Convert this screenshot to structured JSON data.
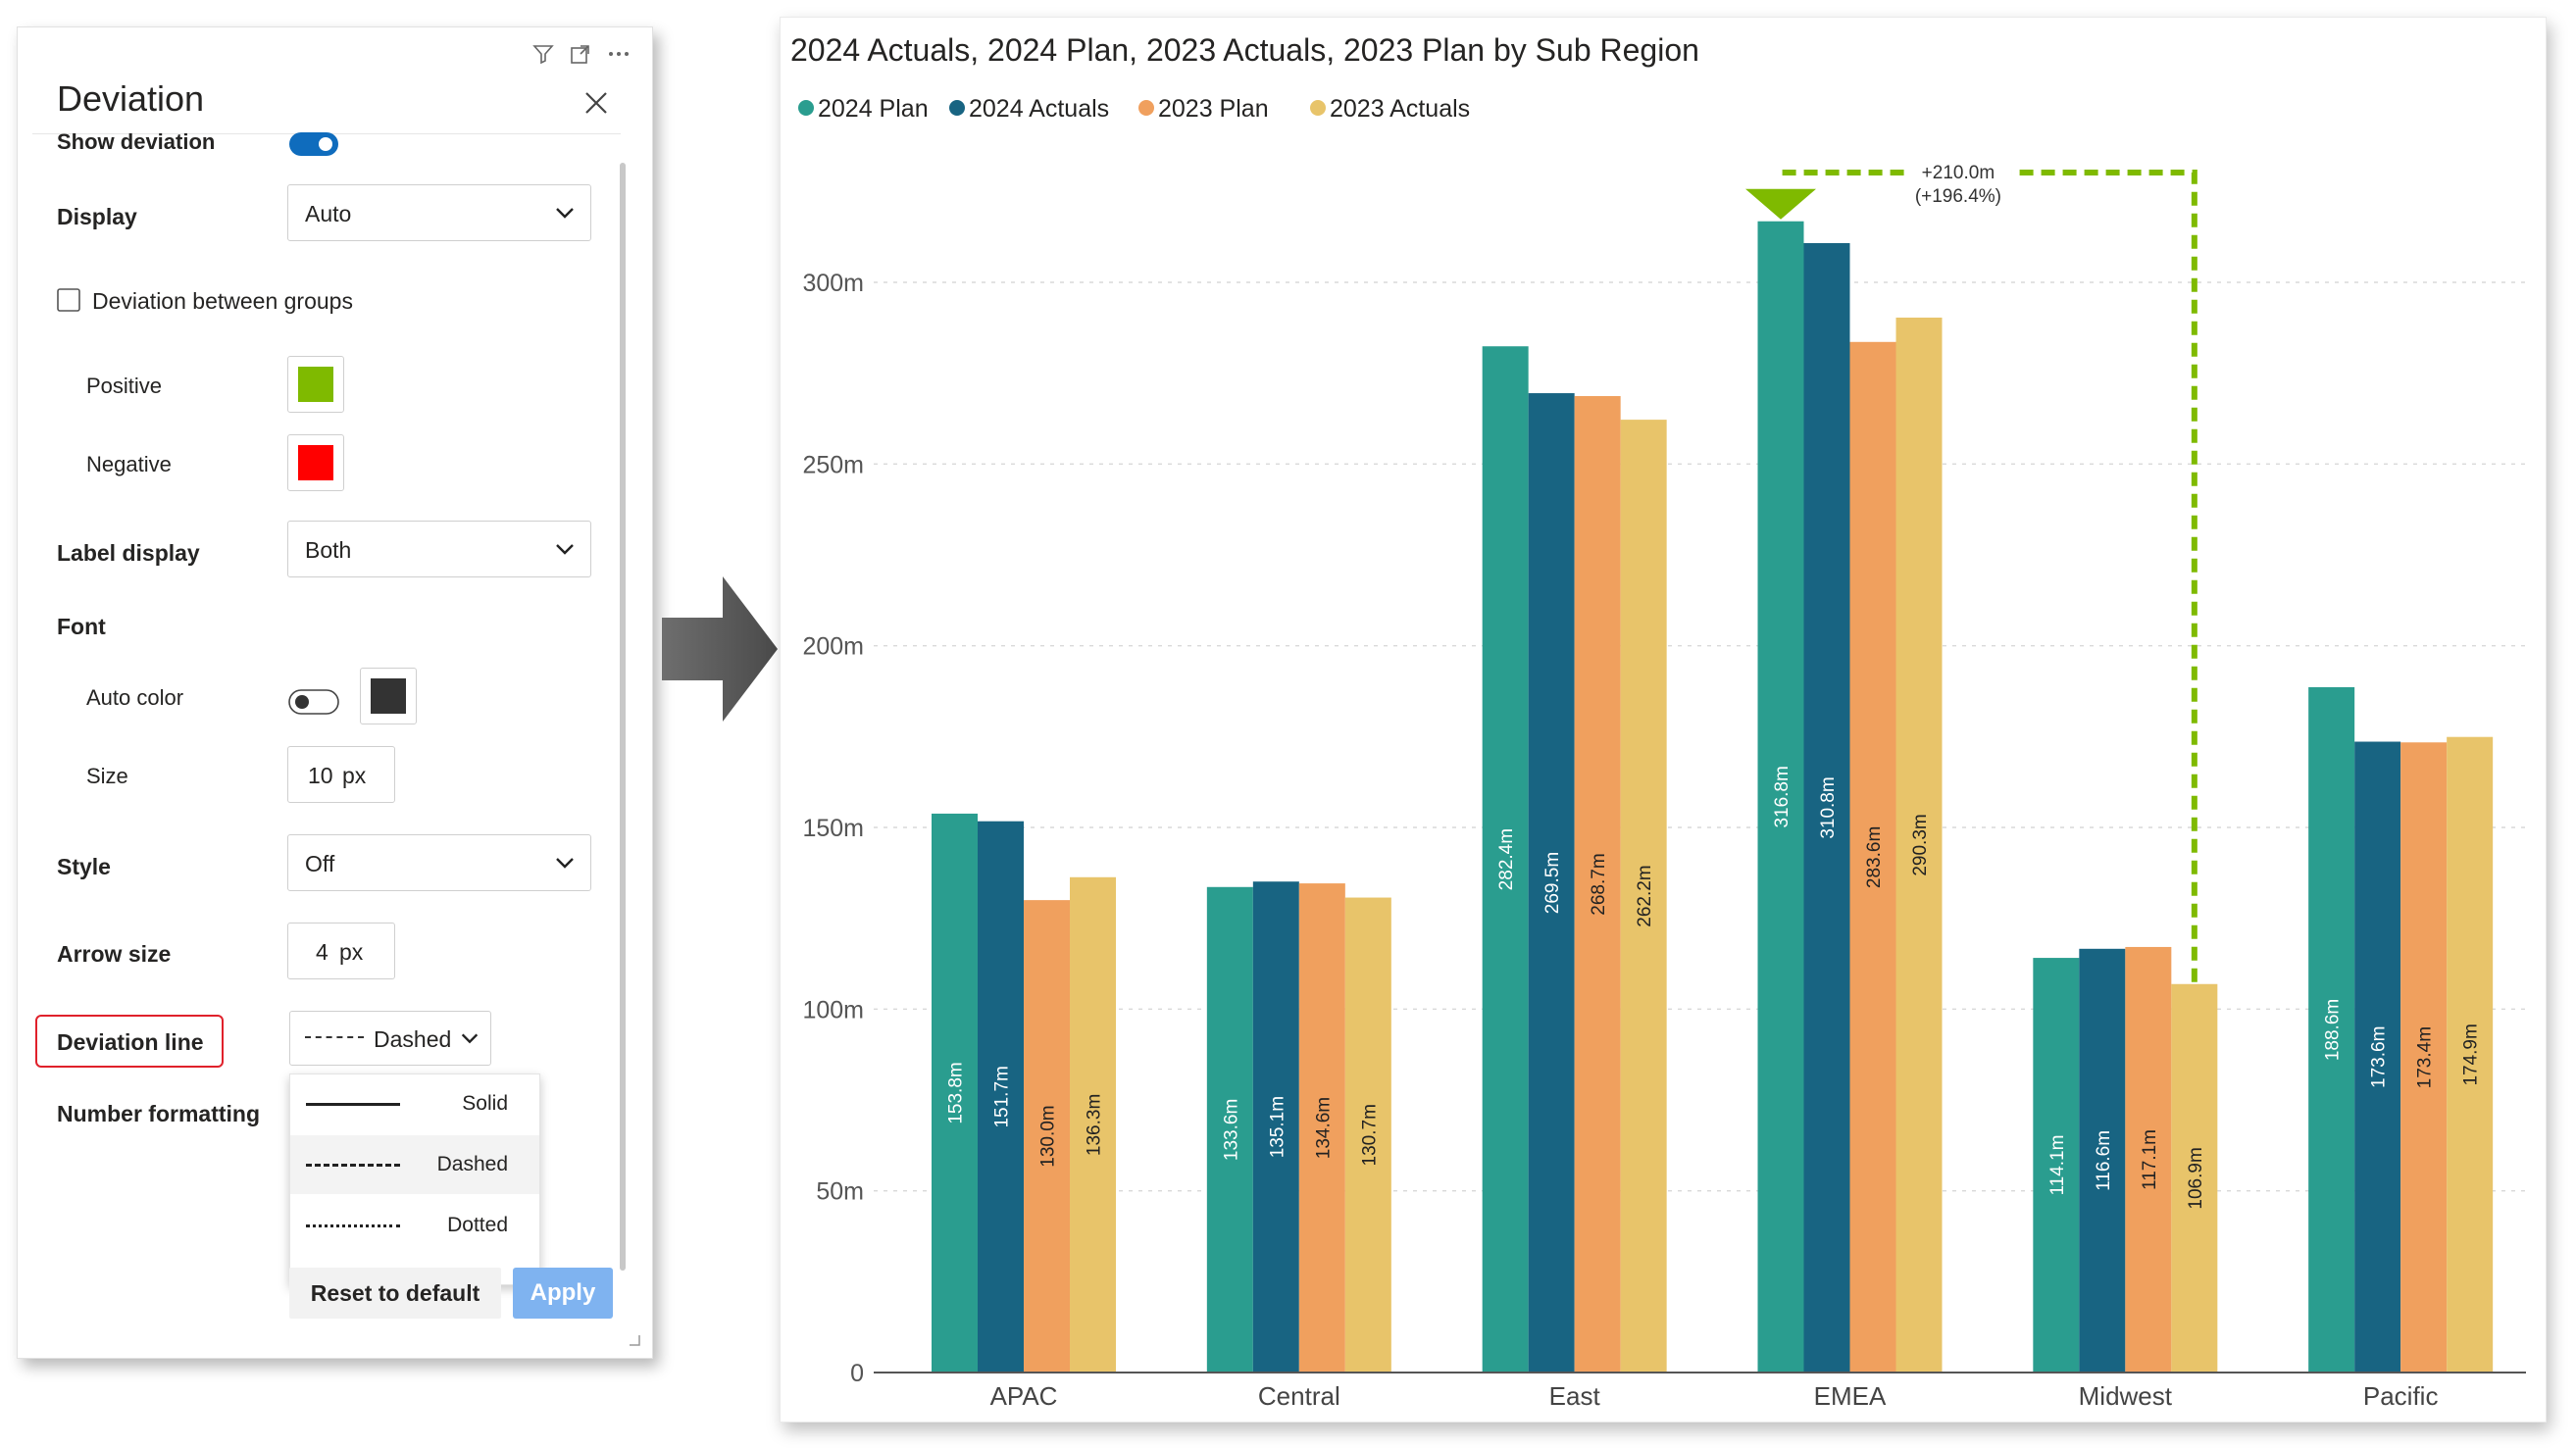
{
  "panel": {
    "title": "Deviation",
    "rows": {
      "show_deviation": "Show deviation",
      "display": "Display",
      "display_value": "Auto",
      "deviation_between_groups": "Deviation between groups",
      "positive": "Positive",
      "negative": "Negative",
      "label_display": "Label display",
      "label_display_value": "Both",
      "font": "Font",
      "auto_color": "Auto color",
      "size": "Size",
      "size_value": "10",
      "size_unit": "px",
      "style": "Style",
      "style_value": "Off",
      "arrow_size": "Arrow size",
      "arrow_size_value": "4",
      "arrow_size_unit": "px",
      "deviation_line": "Deviation line",
      "deviation_line_value": "Dashed",
      "number_formatting": "Number formatting"
    },
    "colors": {
      "positive": "#7fba00",
      "negative": "#ff0000",
      "font_color": "#333333",
      "accent": "#0f6cbd"
    },
    "line_options": [
      "Solid",
      "Dashed",
      "Dotted"
    ],
    "buttons": {
      "reset": "Reset to default",
      "apply": "Apply"
    },
    "icons": [
      "filter-icon",
      "expand-icon",
      "more-options-icon",
      "close-icon",
      "chevron-down-icon"
    ]
  },
  "chart_data": {
    "type": "bar",
    "title": "2024 Actuals, 2024 Plan, 2023 Actuals, 2023 Plan by Sub Region",
    "categories": [
      "APAC",
      "Central",
      "East",
      "EMEA",
      "Midwest",
      "Pacific"
    ],
    "series": [
      {
        "name": "2024 Plan",
        "color": "#2a9d8f",
        "values": [
          153.8,
          133.6,
          282.4,
          316.8,
          114.1,
          188.6
        ],
        "labels": [
          "153.8m",
          "133.6m",
          "282.4m",
          "316.8m",
          "114.1m",
          "188.6m"
        ]
      },
      {
        "name": "2024 Actuals",
        "color": "#186482",
        "values": [
          151.7,
          135.1,
          269.5,
          310.8,
          116.6,
          173.6
        ],
        "labels": [
          "151.7m",
          "135.1m",
          "269.5m",
          "310.8m",
          "116.6m",
          "173.6m"
        ]
      },
      {
        "name": "2023 Plan",
        "color": "#f0a05e",
        "values": [
          130.0,
          134.6,
          268.7,
          283.6,
          117.1,
          173.4
        ],
        "labels": [
          "130.0m",
          "134.6m",
          "268.7m",
          "283.6m",
          "117.1m",
          "173.4m"
        ]
      },
      {
        "name": "2023 Actuals",
        "color": "#e8c46a",
        "values": [
          136.3,
          130.7,
          262.2,
          290.3,
          106.9,
          174.9
        ],
        "labels": [
          "136.3m",
          "130.7m",
          "262.2m",
          "290.3m",
          "106.9m",
          "174.9m"
        ]
      }
    ],
    "yticks": [
      0,
      50,
      100,
      150,
      200,
      250,
      300
    ],
    "ytick_labels": [
      "0",
      "50m",
      "100m",
      "150m",
      "200m",
      "250m",
      "300m"
    ],
    "ylim": [
      0,
      340
    ],
    "grid": true,
    "legend": "top-left",
    "deviation": {
      "from_category": "Midwest",
      "from_series": "2023 Actuals",
      "to_category": "EMEA",
      "to_series": "2024 Plan",
      "value_label": "+210.0m",
      "percent_label": "(+196.4%)",
      "color": "#7fba00",
      "line_style": "dashed"
    }
  }
}
